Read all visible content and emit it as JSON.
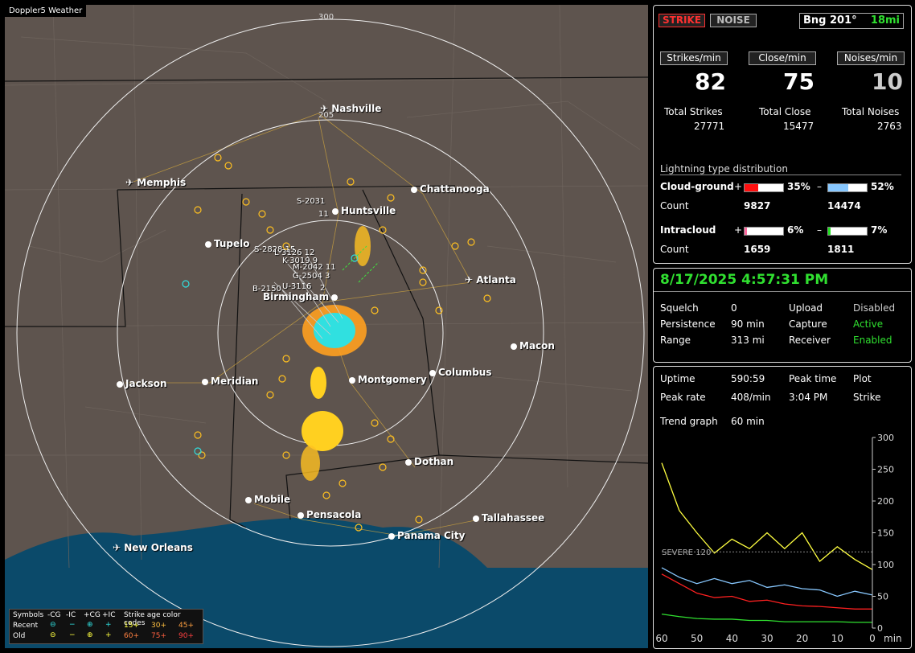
{
  "app_title": "Doppler5 Weather",
  "map": {
    "rings": [
      "300",
      "205"
    ],
    "cities": [
      {
        "id": "nashville",
        "label": "Nashville",
        "icon": "airport-icon"
      },
      {
        "id": "memphis",
        "label": "Memphis",
        "icon": "airport-icon"
      },
      {
        "id": "chattanooga",
        "label": "Chattanooga",
        "icon": "city-dot-icon"
      },
      {
        "id": "huntsville",
        "label": "Huntsville",
        "icon": "city-dot-icon"
      },
      {
        "id": "tupelo",
        "label": "Tupelo",
        "icon": "city-dot-icon"
      },
      {
        "id": "atlanta",
        "label": "Atlanta",
        "icon": "airport-icon"
      },
      {
        "id": "birmingham",
        "label": "Birmingham",
        "icon": "city-dot-icon"
      },
      {
        "id": "macon",
        "label": "Macon",
        "icon": "city-dot-icon"
      },
      {
        "id": "jackson",
        "label": "Jackson",
        "icon": "city-dot-icon"
      },
      {
        "id": "meridian",
        "label": "Meridian",
        "icon": "city-dot-icon"
      },
      {
        "id": "montgomery",
        "label": "Montgomery",
        "icon": "city-dot-icon"
      },
      {
        "id": "columbus",
        "label": "Columbus",
        "icon": "city-dot-icon"
      },
      {
        "id": "dothan",
        "label": "Dothan",
        "icon": "city-dot-icon"
      },
      {
        "id": "mobile",
        "label": "Mobile",
        "icon": "city-dot-icon"
      },
      {
        "id": "pensacola",
        "label": "Pensacola",
        "icon": "city-dot-icon"
      },
      {
        "id": "tallahassee",
        "label": "Tallahassee",
        "icon": "city-dot-icon"
      },
      {
        "id": "panama",
        "label": "Panama City",
        "icon": "city-dot-icon"
      },
      {
        "id": "neworleans",
        "label": "New Orleans",
        "icon": "airport-icon"
      }
    ],
    "storm_tags": [
      "S-2031",
      "11",
      "S-2828 15",
      "L-3126 12",
      "K-3019 9",
      "M-2042 11",
      "G-2504 3",
      "B-2150",
      "U-3116",
      "2"
    ],
    "legend": {
      "symbols": "Symbols",
      "neg_cg": "-CG",
      "neg_ic": "-IC",
      "pos_cg": "+CG",
      "pos_ic": "+IC",
      "age_codes": "Strike age color codes",
      "recent": "Recent",
      "old": "Old",
      "ages_recent": [
        "15+",
        "30+",
        "45+"
      ],
      "ages_old": [
        "60+",
        "75+",
        "90+"
      ]
    }
  },
  "stats": {
    "strike_btn": "STRIKE",
    "noise_btn": "NOISE",
    "bearing": "Bng 201°",
    "distance": "18mi",
    "strikes_min_label": "Strikes/min",
    "close_min_label": "Close/min",
    "noises_min_label": "Noises/min",
    "strikes_min": "82",
    "close_min": "75",
    "noises_min": "10",
    "total_strikes_label": "Total Strikes",
    "total_close_label": "Total Close",
    "total_noises_label": "Total Noises",
    "total_strikes": "27771",
    "total_close": "15477",
    "total_noises": "2763",
    "dist_title": "Lightning type distribution",
    "cg_label": "Cloud-ground",
    "cg_pos_sign": "+",
    "cg_pos_pct": "35%",
    "cg_neg_sign": "–",
    "cg_neg_pct": "52%",
    "cg_count_label": "Count",
    "cg_pos_count": "9827",
    "cg_neg_count": "14474",
    "ic_label": "Intracloud",
    "ic_pos_sign": "+",
    "ic_pos_pct": "6%",
    "ic_neg_sign": "–",
    "ic_neg_pct": "7%",
    "ic_count_label": "Count",
    "ic_pos_count": "1659",
    "ic_neg_count": "1811",
    "cg_pos_fill": 0.35,
    "cg_neg_fill": 0.52,
    "ic_pos_fill": 0.06,
    "ic_neg_fill": 0.07,
    "colors": {
      "cg_pos": "#ff1010",
      "cg_neg": "#88c8ff",
      "ic_pos": "#ff6aa0",
      "ic_neg": "#20e020"
    }
  },
  "status": {
    "datetime": "8/17/2025 4:57:31 PM",
    "squelch_label": "Squelch",
    "squelch": "0",
    "persistence_label": "Persistence",
    "persistence": "90 min",
    "range_label": "Range",
    "range": "313 mi",
    "upload_label": "Upload",
    "upload": "Disabled",
    "capture_label": "Capture",
    "capture": "Active",
    "receiver_label": "Receiver",
    "receiver": "Enabled"
  },
  "trend": {
    "uptime_label": "Uptime",
    "uptime": "590:59",
    "peak_time_label": "Peak time",
    "peak_time": "3:04 PM",
    "plot_label": "Plot",
    "plot": "Strike",
    "peak_rate_label": "Peak rate",
    "peak_rate": "408/min",
    "trend_graph_label": "Trend graph",
    "trend_graph": "60 min",
    "severe_label": "SEVERE 120",
    "y_ticks": [
      "300",
      "250",
      "200",
      "150",
      "100",
      "50",
      "0"
    ],
    "x_ticks": [
      "60",
      "50",
      "40",
      "30",
      "20",
      "10",
      "0"
    ],
    "x_unit": "min"
  },
  "chart_data": {
    "type": "line",
    "xlabel": "min",
    "ylabel": "",
    "xlim": [
      60,
      0
    ],
    "ylim": [
      0,
      300
    ],
    "threshold": 120,
    "x": [
      60,
      55,
      50,
      45,
      40,
      35,
      30,
      25,
      20,
      15,
      10,
      5,
      0
    ],
    "series": [
      {
        "color": "#ffff40",
        "values": [
          260,
          185,
          150,
          118,
          140,
          125,
          150,
          125,
          150,
          105,
          128,
          108,
          92
        ]
      },
      {
        "color": "#88c8ff",
        "values": [
          95,
          80,
          70,
          78,
          70,
          75,
          64,
          68,
          62,
          60,
          50,
          58,
          52
        ]
      },
      {
        "color": "#ff2020",
        "values": [
          85,
          70,
          55,
          48,
          50,
          42,
          44,
          38,
          35,
          34,
          32,
          30,
          30
        ]
      },
      {
        "color": "#30e030",
        "values": [
          22,
          18,
          15,
          14,
          14,
          12,
          12,
          10,
          10,
          10,
          10,
          9,
          9
        ]
      }
    ]
  }
}
